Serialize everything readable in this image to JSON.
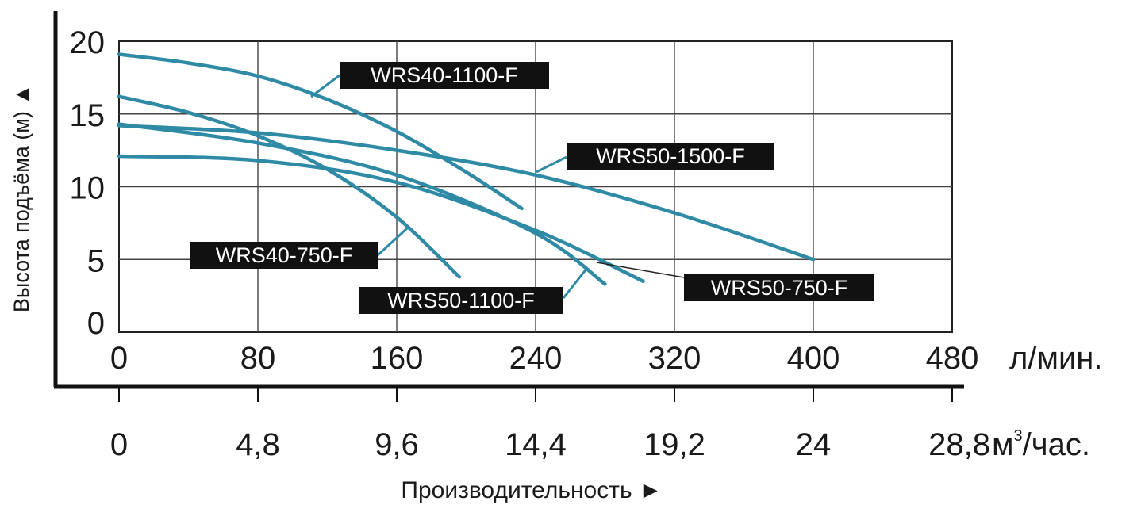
{
  "chart_data": {
    "type": "line",
    "title": "",
    "ylabel": "Высота подъёма (м) ▲",
    "xlabel": "Производительность ►",
    "ylim": [
      0,
      20
    ],
    "xlim": [
      0,
      480
    ],
    "grid": true,
    "y_ticks": [
      "0",
      "5",
      "10",
      "15",
      "20"
    ],
    "x_ticks": [
      "0",
      "80",
      "160",
      "240",
      "320",
      "400",
      "480"
    ],
    "x_unit": "л/мин.",
    "x2_ticks": [
      "0",
      "4,8",
      "9,6",
      "14,4",
      "19,2",
      "24",
      "28,8"
    ],
    "x2_unit_base": "м",
    "x2_unit_sup": "3",
    "x2_unit_rest": "/час.",
    "line_color": "#2f8aa5",
    "series": [
      {
        "name": "WRS40-1100-F",
        "x": [
          0,
          40,
          80,
          120,
          160,
          200,
          232
        ],
        "y": [
          19.1,
          18.5,
          17.6,
          16.0,
          13.8,
          11.0,
          8.5
        ]
      },
      {
        "name": "WRS50-1500-F",
        "x": [
          0,
          80,
          160,
          240,
          320,
          400
        ],
        "y": [
          14.2,
          13.7,
          12.5,
          10.8,
          8.2,
          5.0
        ]
      },
      {
        "name": "WRS40-750-F",
        "x": [
          0,
          40,
          80,
          120,
          160,
          196
        ],
        "y": [
          16.2,
          15.1,
          13.5,
          11.2,
          7.9,
          3.8
        ]
      },
      {
        "name": "WRS50-1100-F",
        "x": [
          0,
          80,
          160,
          240,
          280
        ],
        "y": [
          14.3,
          13.0,
          10.8,
          6.8,
          3.3
        ]
      },
      {
        "name": "WRS50-750-F",
        "x": [
          0,
          80,
          160,
          240,
          302
        ],
        "y": [
          12.1,
          11.8,
          10.3,
          7.0,
          3.5
        ]
      }
    ]
  }
}
